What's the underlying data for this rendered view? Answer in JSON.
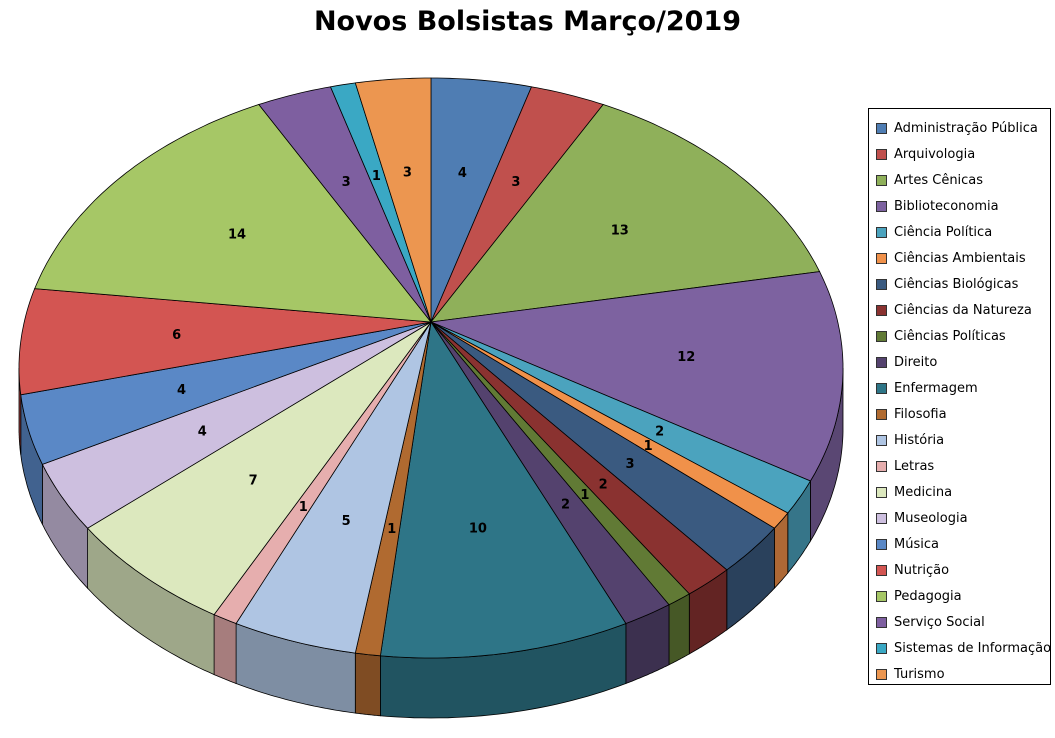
{
  "chart_data": {
    "type": "pie",
    "style": "3d",
    "title": "Novos Bolsistas Março/2019",
    "legend_position": "right",
    "data_labels": true,
    "categories": [
      "Administração Pública",
      "Arquivologia",
      "Artes Cênicas",
      "Biblioteconomia",
      "Ciência Política",
      "Ciências Ambientais",
      "Ciências Biológicas",
      "Ciências da Natureza",
      "Ciências Políticas",
      "Direito",
      "Enfermagem",
      "Filosofia",
      "História",
      "Letras",
      "Medicina",
      "Museologia",
      "Música",
      "Nutrição",
      "Pedagogia",
      "Serviço Social",
      "Sistemas de Informação",
      "Turismo"
    ],
    "values": [
      4,
      3,
      13,
      12,
      2,
      1,
      3,
      2,
      1,
      2,
      10,
      1,
      5,
      1,
      7,
      4,
      4,
      6,
      14,
      3,
      1,
      3
    ],
    "colors": [
      "#4F7DB3",
      "#C0504D",
      "#8FB05A",
      "#7D62A0",
      "#4BA3BE",
      "#F0914A",
      "#3A5A80",
      "#8A3230",
      "#617A35",
      "#54426E",
      "#2E7587",
      "#B06A30",
      "#AFC5E3",
      "#E6AEAE",
      "#DCE8BE",
      "#CDBFDF",
      "#5A88C6",
      "#D35552",
      "#A6C766",
      "#7E5FA0",
      "#3AA8C4",
      "#EC9650"
    ]
  }
}
